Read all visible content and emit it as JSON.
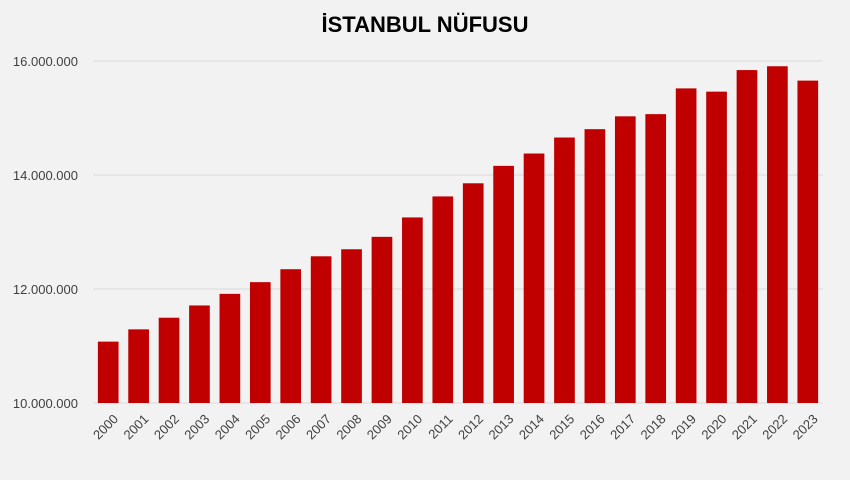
{
  "chart_data": {
    "type": "bar",
    "title": "İSTANBUL NÜFUSU",
    "xlabel": "",
    "ylabel": "",
    "ylim": [
      10000000,
      16000000
    ],
    "yticks": [
      10000000,
      12000000,
      14000000,
      16000000
    ],
    "ytick_labels": [
      "10.000.000",
      "12.000.000",
      "14.000.000",
      "16.000.000"
    ],
    "grid": true,
    "legend": "none",
    "bar_color": "#c00000",
    "categories": [
      "2000",
      "2001",
      "2002",
      "2003",
      "2004",
      "2005",
      "2006",
      "2007",
      "2008",
      "2009",
      "2010",
      "2011",
      "2012",
      "2013",
      "2014",
      "2015",
      "2016",
      "2017",
      "2018",
      "2019",
      "2020",
      "2021",
      "2022",
      "2023"
    ],
    "values": [
      11076840,
      11292009,
      11495948,
      11711000,
      11915000,
      12120000,
      12347000,
      12573836,
      12697164,
      12915158,
      13255685,
      13624240,
      13854740,
      14160467,
      14377018,
      14657434,
      14804116,
      15029231,
      15067724,
      15519267,
      15462452,
      15840900,
      15907951,
      15655924
    ]
  }
}
